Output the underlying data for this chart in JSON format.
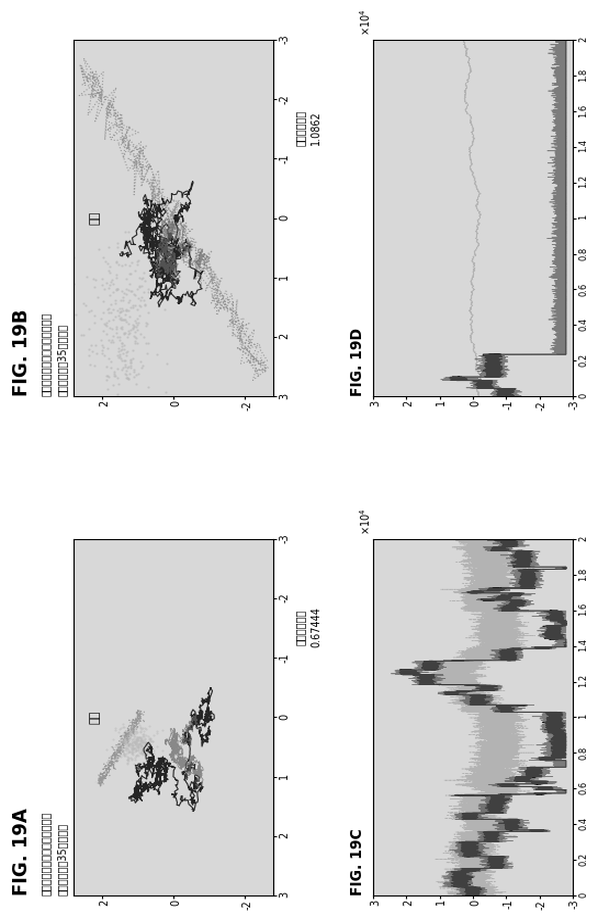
{
  "fig_title_A": "FIG. 19A",
  "fig_title_B": "FIG. 19B",
  "fig_title_C": "FIG. 19C",
  "fig_title_D": "FIG. 19D",
  "subtitle_line1": "脳動脈灘が破裂して、くも膜下",
  "subtitle_line2": "出血していゃ35歳の女性",
  "label_A": "左眼",
  "label_B": "右眼",
  "aspect_label": "アスペクト比",
  "aspect_value_A": "0.67444",
  "aspect_value_B": "1.0862",
  "bg_color": "#ffffff",
  "plot_bg": "#d8d8d8"
}
